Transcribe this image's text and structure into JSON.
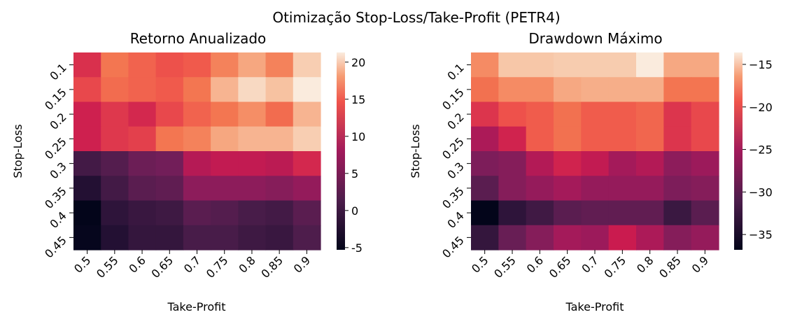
{
  "suptitle": "Otimização Stop-Loss/Take-Profit (PETR4)",
  "chart_data": [
    {
      "type": "heatmap",
      "title": "Retorno Anualizado",
      "xlabel": "Take-Profit",
      "ylabel": "Stop-Loss",
      "x_categories": [
        "0.5",
        "0.55",
        "0.6",
        "0.65",
        "0.7",
        "0.75",
        "0.8",
        "0.85",
        "0.9"
      ],
      "y_categories": [
        "0.1",
        "0.15",
        "0.2",
        "0.25",
        "0.3",
        "0.35",
        "0.4",
        "0.45"
      ],
      "colormap": "rocket",
      "vmin": -5.3,
      "vmax": 21.3,
      "colorbar_ticks": [
        "20",
        "15",
        "10",
        "5",
        "0",
        "-5"
      ],
      "colorbar_tick_values": [
        20,
        15,
        10,
        5,
        0,
        -5
      ],
      "values": [
        [
          12.5,
          16.5,
          15.5,
          14.5,
          15.0,
          17.0,
          18.5,
          17.0,
          20.0
        ],
        [
          14.0,
          16.0,
          15.5,
          15.0,
          16.5,
          19.0,
          20.5,
          19.5,
          21.3
        ],
        [
          11.5,
          13.0,
          12.0,
          14.0,
          15.5,
          16.5,
          17.5,
          16.0,
          19.0
        ],
        [
          11.5,
          13.0,
          13.5,
          16.5,
          17.0,
          18.5,
          19.0,
          19.0,
          20.0
        ],
        [
          0.5,
          2.0,
          4.0,
          4.5,
          9.5,
          10.5,
          10.5,
          10.0,
          12.0
        ],
        [
          -2.5,
          0.5,
          2.5,
          3.0,
          6.5,
          6.5,
          6.5,
          6.0,
          7.0
        ],
        [
          -5.3,
          -1.5,
          -0.5,
          0.0,
          2.5,
          2.0,
          1.0,
          0.5,
          2.5
        ],
        [
          -5.0,
          -2.5,
          -1.0,
          -1.0,
          1.0,
          1.0,
          0.0,
          -0.5,
          1.5
        ]
      ]
    },
    {
      "type": "heatmap",
      "title": "Drawdown Máximo",
      "xlabel": "Take-Profit",
      "ylabel": "Stop-Loss",
      "x_categories": [
        "0.5",
        "0.55",
        "0.6",
        "0.65",
        "0.7",
        "0.75",
        "0.8",
        "0.85",
        "0.9"
      ],
      "y_categories": [
        "0.1",
        "0.15",
        "0.2",
        "0.25",
        "0.3",
        "0.35",
        "0.4",
        "0.45"
      ],
      "colormap": "rocket",
      "vmin": -36.8,
      "vmax": -13.6,
      "colorbar_ticks": [
        "−15",
        "−20",
        "−25",
        "−30",
        "−35"
      ],
      "colorbar_tick_values": [
        -15,
        -20,
        -25,
        -30,
        -35
      ],
      "values": [
        [
          -17.0,
          -15.0,
          -15.0,
          -14.8,
          -14.8,
          -14.8,
          -13.6,
          -16.0,
          -16.0
        ],
        [
          -18.0,
          -17.0,
          -17.0,
          -16.0,
          -15.8,
          -15.8,
          -15.8,
          -17.8,
          -17.8
        ],
        [
          -21.0,
          -19.5,
          -19.0,
          -18.0,
          -19.0,
          -19.0,
          -18.5,
          -21.0,
          -20.0
        ],
        [
          -24.5,
          -22.0,
          -19.0,
          -18.0,
          -19.0,
          -19.0,
          -18.5,
          -21.0,
          -20.0
        ],
        [
          -27.5,
          -27.0,
          -24.0,
          -22.0,
          -23.0,
          -25.0,
          -24.0,
          -26.5,
          -25.5
        ],
        [
          -30.0,
          -27.0,
          -26.0,
          -25.0,
          -26.0,
          -26.0,
          -26.0,
          -27.5,
          -27.0
        ],
        [
          -36.8,
          -33.5,
          -32.0,
          -30.0,
          -29.5,
          -29.5,
          -29.5,
          -32.5,
          -30.0
        ],
        [
          -33.0,
          -29.0,
          -27.0,
          -25.0,
          -25.5,
          -22.5,
          -24.5,
          -27.0,
          -26.0
        ]
      ]
    }
  ]
}
